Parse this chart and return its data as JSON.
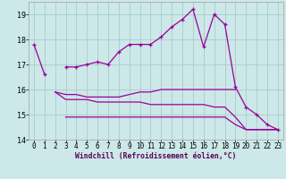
{
  "background_color": "#cce8e8",
  "grid_color": "#aacccc",
  "line_color": "#990099",
  "xlabel": "Windchill (Refroidissement éolien,°C)",
  "ylim": [
    14,
    19.5
  ],
  "xlim": [
    -0.5,
    23.5
  ],
  "yticks": [
    14,
    15,
    16,
    17,
    18,
    19
  ],
  "xticks": [
    0,
    1,
    2,
    3,
    4,
    5,
    6,
    7,
    8,
    9,
    10,
    11,
    12,
    13,
    14,
    15,
    16,
    17,
    18,
    19,
    20,
    21,
    22,
    23
  ],
  "main_x": [
    0,
    1,
    2,
    3,
    4,
    5,
    6,
    7,
    8,
    9,
    10,
    11,
    12,
    13,
    14,
    15,
    16,
    17,
    18,
    19,
    20,
    21,
    22,
    23
  ],
  "main_y": [
    17.8,
    16.6,
    null,
    16.9,
    16.9,
    17.0,
    17.1,
    17.0,
    17.5,
    17.8,
    17.8,
    17.8,
    18.1,
    18.5,
    18.8,
    19.2,
    17.7,
    19.0,
    18.6,
    16.1,
    15.3,
    15.0,
    14.6,
    14.4
  ],
  "upper_x": [
    2,
    3,
    4,
    5,
    6,
    7,
    8,
    9,
    10,
    11,
    12,
    13,
    14,
    15,
    16,
    17,
    18,
    19
  ],
  "upper_y": [
    15.9,
    15.8,
    15.8,
    15.7,
    15.7,
    15.7,
    15.7,
    15.8,
    15.9,
    15.9,
    16.0,
    16.0,
    16.0,
    16.0,
    16.0,
    16.0,
    16.0,
    16.0
  ],
  "mid_x": [
    2,
    3,
    4,
    5,
    6,
    7,
    8,
    9,
    10,
    11,
    12,
    13,
    14,
    15,
    16,
    17,
    18,
    19,
    20,
    21,
    22,
    23
  ],
  "mid_y": [
    15.9,
    15.6,
    15.6,
    15.6,
    15.5,
    15.5,
    15.5,
    15.5,
    15.5,
    15.4,
    15.4,
    15.4,
    15.4,
    15.4,
    15.4,
    15.3,
    15.3,
    14.9,
    14.4,
    14.4,
    14.4,
    14.4
  ],
  "lower_x": [
    3,
    4,
    5,
    6,
    7,
    8,
    9,
    10,
    11,
    12,
    13,
    14,
    15,
    16,
    17,
    18,
    19,
    20,
    21,
    22,
    23
  ],
  "lower_y": [
    14.9,
    14.9,
    14.9,
    14.9,
    14.9,
    14.9,
    14.9,
    14.9,
    14.9,
    14.9,
    14.9,
    14.9,
    14.9,
    14.9,
    14.9,
    14.9,
    14.6,
    14.4,
    14.4,
    14.4,
    14.4
  ],
  "tick_fontsize": 5.5,
  "xlabel_fontsize": 5.8,
  "linewidth": 0.9,
  "marker_size": 2.8
}
